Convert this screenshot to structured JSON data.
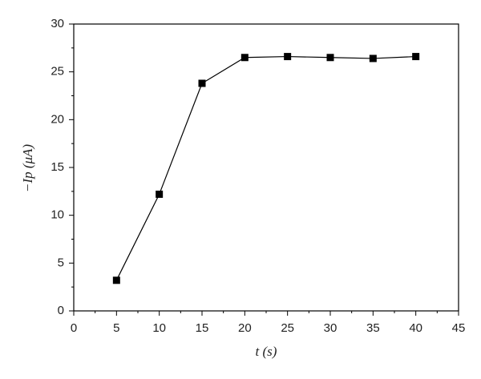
{
  "chart_data": {
    "type": "line",
    "x_label": "t (s)",
    "y_label": "−Ip (μA)",
    "x": [
      5,
      10,
      15,
      20,
      25,
      30,
      35,
      40
    ],
    "series": [
      {
        "name": "Ip",
        "color": "#000000",
        "values": [
          3.2,
          12.2,
          23.8,
          26.5,
          26.6,
          26.5,
          26.4,
          26.6
        ]
      }
    ],
    "xlim": [
      0,
      45
    ],
    "xticks": [
      0,
      5,
      10,
      15,
      20,
      25,
      30,
      35,
      40,
      45
    ],
    "ylim": [
      0,
      30
    ],
    "yticks": [
      0,
      5,
      10,
      15,
      20,
      25,
      30
    ],
    "grid": false
  }
}
